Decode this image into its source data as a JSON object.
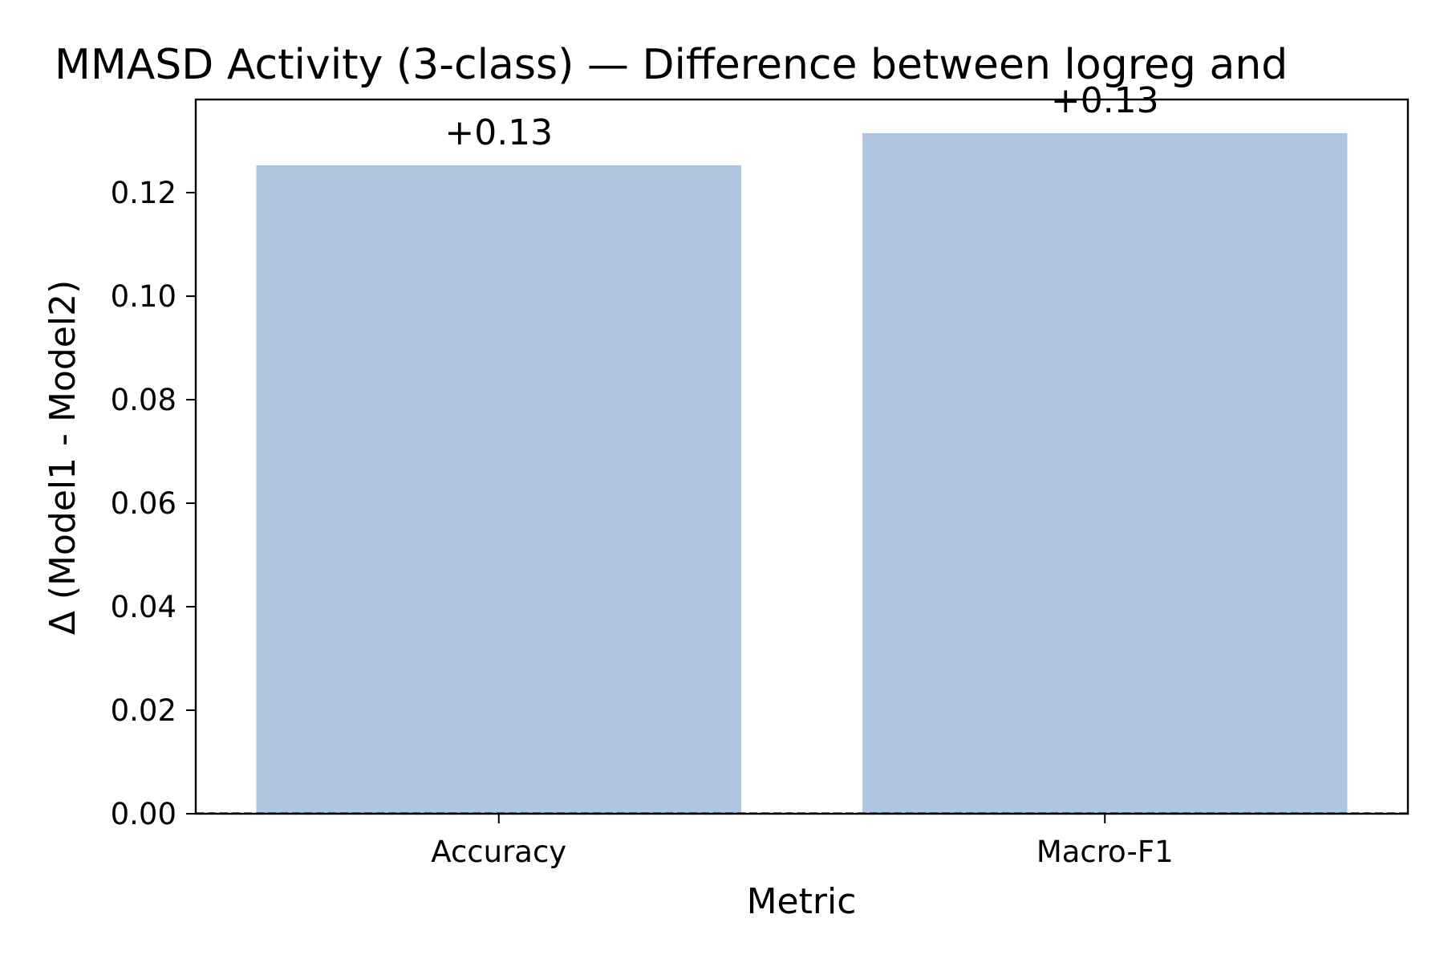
{
  "chart_data": {
    "type": "bar",
    "title": "MMASD Activity (3-class) — Difference between logreg and",
    "xlabel": "Metric",
    "ylabel": "Δ (Model1 - Model2)",
    "categories": [
      "Accuracy",
      "Macro-F1"
    ],
    "values": [
      0.1253,
      0.1315
    ],
    "value_labels": [
      "+0.13",
      "+0.13"
    ],
    "ylim": [
      0,
      0.138
    ],
    "yticks": [
      0.0,
      0.02,
      0.04,
      0.06,
      0.08,
      0.1,
      0.12
    ],
    "ytick_labels": [
      "0.00",
      "0.02",
      "0.04",
      "0.06",
      "0.08",
      "0.10",
      "0.12"
    ],
    "grid": false,
    "legend": "none",
    "zero_line": "dashed",
    "colors": {
      "bar": "#b0c6de",
      "axis": "#000000"
    }
  }
}
